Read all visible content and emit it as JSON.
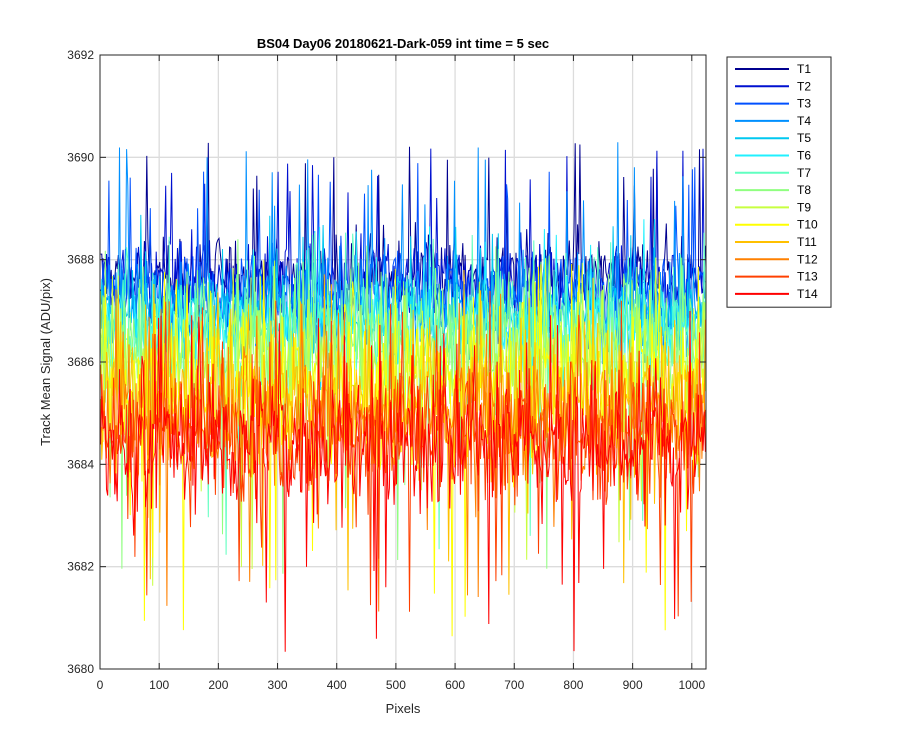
{
  "chart_data": {
    "type": "line",
    "title": "BS04 Day06 20180621-Dark-059 int time = 5 sec",
    "xlabel": "Pixels",
    "ylabel": "Track Mean Signal (ADU/pix)",
    "xlim": [
      0,
      1024
    ],
    "ylim": [
      3680,
      3692
    ],
    "xticks": [
      0,
      100,
      200,
      300,
      400,
      500,
      600,
      700,
      800,
      900,
      1000
    ],
    "yticks": [
      3680,
      3682,
      3684,
      3686,
      3688,
      3690,
      3692
    ],
    "grid": true,
    "legend_position": "outside-right-top",
    "x_range": [
      1,
      1024
    ],
    "series": [
      {
        "name": "T1",
        "color": "#00008f",
        "mean": 3687.7,
        "min": 3686.4,
        "max": 3690.4
      },
      {
        "name": "T2",
        "color": "#0010d0",
        "mean": 3687.6,
        "min": 3686.2,
        "max": 3690.2
      },
      {
        "name": "T3",
        "color": "#0050ff",
        "mean": 3687.4,
        "min": 3686.0,
        "max": 3689.9
      },
      {
        "name": "T4",
        "color": "#0090ff",
        "mean": 3687.1,
        "min": 3685.7,
        "max": 3690.3
      },
      {
        "name": "T5",
        "color": "#00c8f0",
        "mean": 3686.9,
        "min": 3685.4,
        "max": 3689.0
      },
      {
        "name": "T6",
        "color": "#20f0ff",
        "mean": 3686.7,
        "min": 3685.2,
        "max": 3688.8
      },
      {
        "name": "T7",
        "color": "#60ffc0",
        "mean": 3686.5,
        "min": 3682.2,
        "max": 3688.6
      },
      {
        "name": "T8",
        "color": "#90ff80",
        "mean": 3686.3,
        "min": 3681.8,
        "max": 3688.4
      },
      {
        "name": "T9",
        "color": "#c8ff40",
        "mean": 3686.0,
        "min": 3681.6,
        "max": 3688.2
      },
      {
        "name": "T10",
        "color": "#ffff00",
        "mean": 3685.5,
        "min": 3680.6,
        "max": 3688.0
      },
      {
        "name": "T11",
        "color": "#ffc000",
        "mean": 3685.2,
        "min": 3681.4,
        "max": 3687.8
      },
      {
        "name": "T12",
        "color": "#ff8000",
        "mean": 3684.9,
        "min": 3681.1,
        "max": 3687.6
      },
      {
        "name": "T13",
        "color": "#ff4000",
        "mean": 3684.6,
        "min": 3681.0,
        "max": 3687.4
      },
      {
        "name": "T14",
        "color": "#ff0000",
        "mean": 3684.4,
        "min": 3680.2,
        "max": 3687.0
      }
    ]
  }
}
